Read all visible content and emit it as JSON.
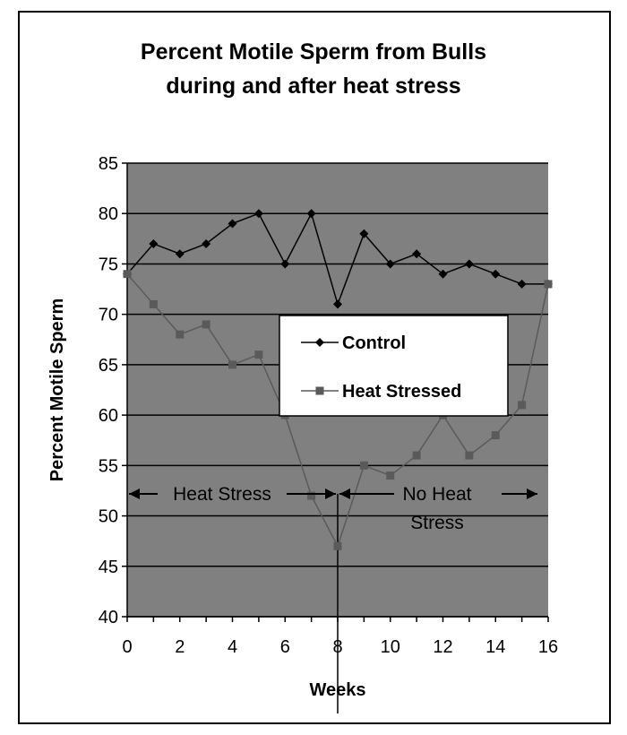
{
  "chart_data": {
    "type": "line",
    "title": "Percent Motile Sperm from Bulls",
    "subtitle": "during and after heat stress",
    "xlabel": "Weeks",
    "ylabel": "Percent Motile Sperm",
    "xlim": [
      0,
      16
    ],
    "ylim": [
      40,
      85
    ],
    "x_ticks": [
      0,
      2,
      4,
      6,
      8,
      10,
      12,
      14,
      16
    ],
    "y_ticks": [
      40,
      45,
      50,
      55,
      60,
      65,
      70,
      75,
      80,
      85
    ],
    "grid": "horizontal",
    "plot_background": "#808080",
    "legend_position": "center-right",
    "x": [
      0,
      1,
      2,
      3,
      4,
      5,
      6,
      7,
      8,
      9,
      10,
      11,
      12,
      13,
      14,
      15,
      16
    ],
    "series": [
      {
        "name": "Control",
        "marker": "diamond",
        "color": "#000000",
        "values": [
          74,
          77,
          76,
          77,
          79,
          80,
          75,
          80,
          71,
          78,
          75,
          76,
          74,
          75,
          74,
          73,
          73
        ]
      },
      {
        "name": "Heat Stressed",
        "marker": "square",
        "color": "#5a5a5a",
        "values": [
          74,
          71,
          68,
          69,
          65,
          66,
          60,
          52,
          47,
          55,
          54,
          56,
          60,
          56,
          58,
          61,
          73
        ]
      }
    ],
    "annotations": [
      {
        "text": "Heat Stress",
        "x_range": [
          0,
          8
        ]
      },
      {
        "text": "No Heat Stress",
        "x_range": [
          8,
          16
        ]
      }
    ],
    "divider_x": 8
  }
}
